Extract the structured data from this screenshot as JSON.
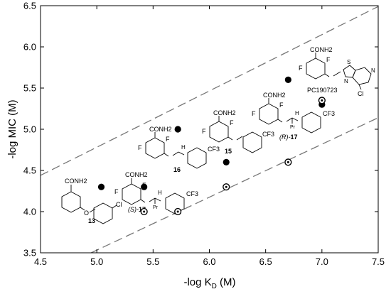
{
  "chart_data": {
    "type": "scatter",
    "xlabel": "-log K",
    "xlabel_sub": "D",
    "xlabel_unit": " (M)",
    "ylabel": "-log MIC (M)",
    "xlim": [
      4.5,
      7.5
    ],
    "ylim": [
      3.5,
      6.5
    ],
    "xticks": [
      "4.5",
      "5.0",
      "5.5",
      "6.0",
      "6.5",
      "7.0",
      "7.5"
    ],
    "yticks": [
      "3.5",
      "4.0",
      "4.5",
      "5.0",
      "5.5",
      "6.0",
      "6.5"
    ],
    "grid": false,
    "series": [
      {
        "marker": "filled-circle",
        "color": "#000000",
        "points": [
          [
            5.04,
            4.3
          ],
          [
            5.42,
            4.3
          ],
          [
            5.72,
            5.0
          ],
          [
            6.15,
            4.6
          ],
          [
            6.7,
            5.6
          ],
          [
            7.0,
            5.3
          ]
        ]
      },
      {
        "marker": "dotted-circle",
        "color": "#000000",
        "points": [
          [
            5.42,
            4.0
          ],
          [
            5.72,
            4.0
          ],
          [
            6.15,
            4.3
          ],
          [
            6.7,
            4.6
          ],
          [
            7.0,
            5.35
          ]
        ]
      }
    ],
    "bounds": [
      {
        "style": "dashed",
        "color": "#777777",
        "points": [
          [
            4.5,
            4.44
          ],
          [
            7.5,
            6.49
          ]
        ]
      },
      {
        "style": "dashed",
        "color": "#777777",
        "points": [
          [
            4.95,
            3.5
          ],
          [
            7.5,
            5.14
          ]
        ]
      }
    ],
    "annotations": {
      "compound_13": "13",
      "compound_16": "16",
      "compound_15": "15",
      "compound_s17_prefix": "(S)-",
      "compound_s17_num": "17",
      "compound_r17_prefix": "(R)-",
      "compound_r17_num": "17",
      "compound_pc": "PC190723"
    },
    "structure_text": {
      "conh2": "CONH2",
      "f": "F",
      "cl": "Cl",
      "cf3": "CF3",
      "nh": "H",
      "n": "N",
      "s": "S",
      "o": "O",
      "pr": "Pr"
    }
  }
}
